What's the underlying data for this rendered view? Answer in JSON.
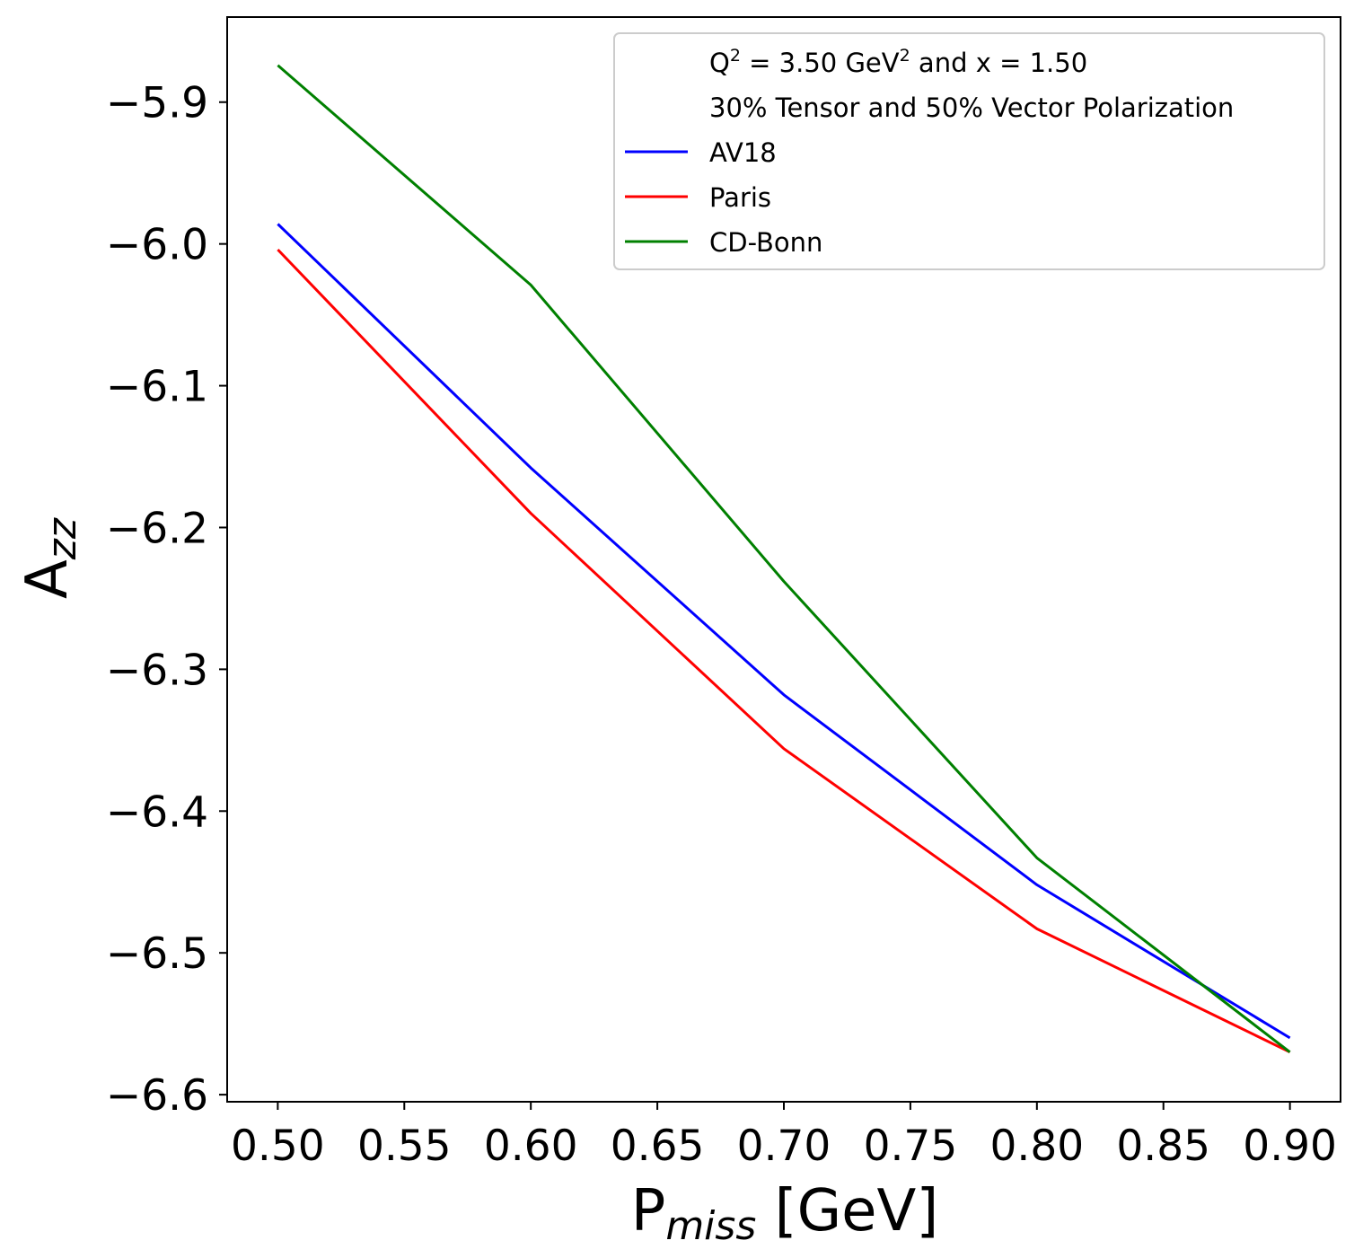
{
  "chart_data": {
    "type": "line",
    "xlabel": {
      "main": "P",
      "sub": "miss",
      "unit": "[GeV]"
    },
    "ylabel": {
      "main": "A",
      "sub": "zz"
    },
    "xlim": [
      0.48,
      0.92
    ],
    "ylim": [
      -6.605,
      -5.84
    ],
    "x_ticks": [
      "0.50",
      "0.55",
      "0.60",
      "0.65",
      "0.70",
      "0.75",
      "0.80",
      "0.85",
      "0.90"
    ],
    "y_ticks": [
      "−5.9",
      "−6.0",
      "−6.1",
      "−6.2",
      "−6.3",
      "−6.4",
      "−6.5",
      "−6.6"
    ],
    "x": [
      0.5,
      0.6,
      0.7,
      0.8,
      0.9
    ],
    "series": [
      {
        "name": "AV18",
        "color": "#0000ff",
        "values": [
          -5.986,
          -6.158,
          -6.318,
          -6.452,
          -6.56
        ]
      },
      {
        "name": "Paris",
        "color": "#ff0000",
        "values": [
          -6.004,
          -6.19,
          -6.356,
          -6.483,
          -6.57
        ]
      },
      {
        "name": "CD-Bonn",
        "color": "#008000",
        "values": [
          -5.874,
          -6.029,
          -6.238,
          -6.433,
          -6.57
        ]
      }
    ],
    "legend": {
      "position": "top-right",
      "header_lines": [
        {
          "a": "Q",
          "sup1": "2",
          "b": " = 3.50 GeV",
          "sup2": "2",
          "c": " and x = 1.50"
        },
        {
          "text": "30% Tensor and 50% Vector Polarization"
        }
      ]
    },
    "grid": false
  }
}
